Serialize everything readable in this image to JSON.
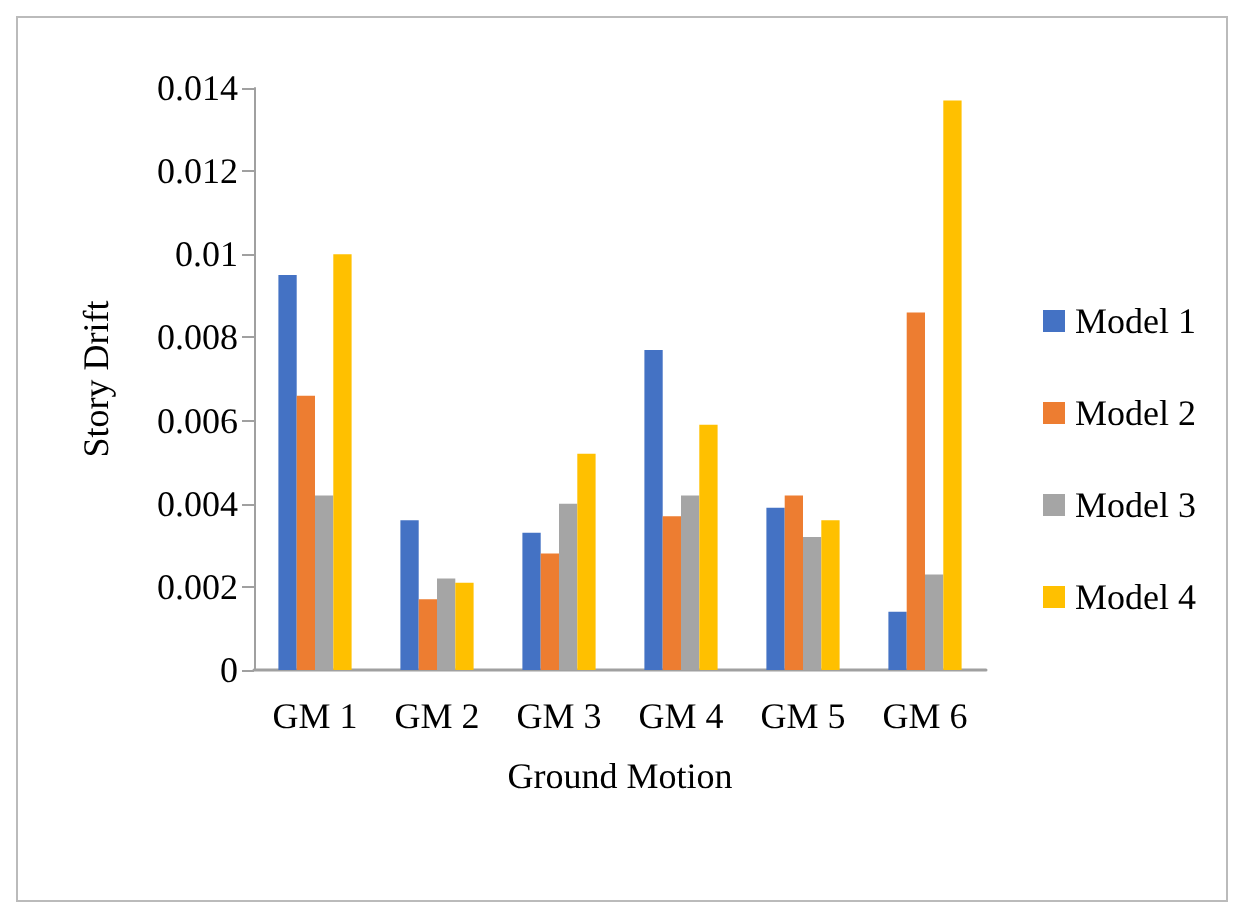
{
  "chart_data": {
    "type": "bar",
    "xlabel": "Ground Motion",
    "ylabel": "Story Drift",
    "categories": [
      "GM 1",
      "GM 2",
      "GM 3",
      "GM 4",
      "GM 5",
      "GM 6"
    ],
    "series": [
      {
        "name": "Model 1",
        "color": "#4472c4",
        "values": [
          0.0095,
          0.0036,
          0.0033,
          0.0077,
          0.0039,
          0.0014
        ]
      },
      {
        "name": "Model 2",
        "color": "#ed7d31",
        "values": [
          0.0066,
          0.0017,
          0.0028,
          0.0037,
          0.0042,
          0.0086
        ]
      },
      {
        "name": "Model 3",
        "color": "#a5a5a5",
        "values": [
          0.0042,
          0.0022,
          0.004,
          0.0042,
          0.0032,
          0.0023
        ]
      },
      {
        "name": "Model 4",
        "color": "#ffc000",
        "values": [
          0.01,
          0.0021,
          0.0052,
          0.0059,
          0.0036,
          0.0137
        ]
      }
    ],
    "ylim": [
      0,
      0.014
    ],
    "yticks": [
      0,
      0.002,
      0.004,
      0.006,
      0.008,
      0.01,
      0.012,
      0.014
    ],
    "grid": false,
    "legend": "right"
  }
}
